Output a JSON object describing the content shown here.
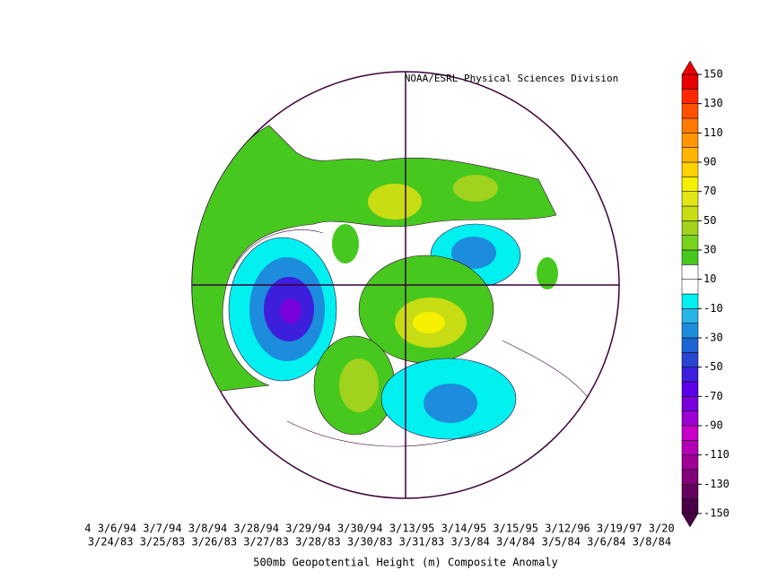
{
  "map": {
    "credit": "NOAA/ESRL Physical Sciences Division",
    "dates_line1": "4 3/6/94 3/7/94 3/8/94 3/28/94 3/29/94 3/30/94 3/13/95 3/14/95 3/15/95 3/12/96 3/19/97 3/20",
    "dates_line2": "3/24/83 3/25/83 3/26/83 3/27/83 3/28/83 3/30/83 3/31/83 3/3/84 3/4/84 3/5/84 3/6/84 3/8/84",
    "title": "500mb Geopotential Height (m) Composite Anomaly"
  },
  "colorbar": {
    "limits": [
      -150,
      150
    ],
    "ticks": [
      150,
      130,
      110,
      90,
      70,
      50,
      30,
      10,
      -10,
      -30,
      -50,
      -70,
      -90,
      -110,
      -130,
      -150
    ],
    "colors": [
      "#4a0046",
      "#66005f",
      "#820078",
      "#9e0096",
      "#b400b4",
      "#c800c8",
      "#9b00d2",
      "#7800dc",
      "#5a00e6",
      "#3c1edc",
      "#2846d2",
      "#1e64d2",
      "#1e8cdc",
      "#28b4e6",
      "#00f0f0",
      "#ffffff",
      "#ffffff",
      "#46c81e",
      "#78d21e",
      "#a0d21e",
      "#c8dc14",
      "#e1e614",
      "#f5f000",
      "#ffd200",
      "#ffb400",
      "#ff9600",
      "#ff7800",
      "#ff5000",
      "#ff2800",
      "#e60000"
    ]
  }
}
